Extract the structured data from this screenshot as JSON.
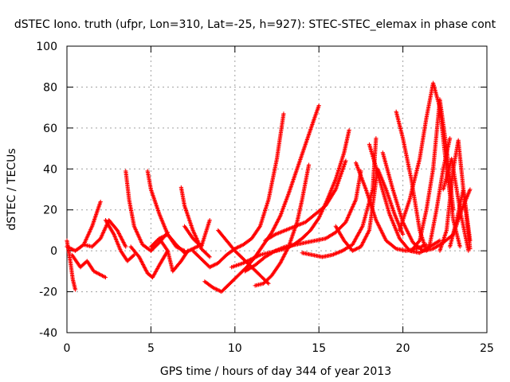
{
  "chart_data": {
    "type": "scatter",
    "title": "dSTEC Iono. truth (ufpr, Lon=310, Lat=-25, h=927): STEC-STEC_elemax in phase cont",
    "xlabel": "GPS time / hours of day 344 of year 2013",
    "ylabel": "dSTEC  / TECUs",
    "xlim": [
      0,
      25
    ],
    "ylim": [
      -40,
      100
    ],
    "xticks": [
      0,
      5,
      10,
      15,
      20,
      25
    ],
    "yticks": [
      -40,
      -20,
      0,
      20,
      40,
      60,
      80,
      100
    ],
    "grid": true,
    "marker": "+",
    "color": "#ff0000",
    "series": [
      {
        "x": [
          0.0,
          0.2,
          0.35,
          0.5
        ],
        "y": [
          5,
          -5,
          -14,
          -19
        ]
      },
      {
        "x": [
          0.0,
          0.5,
          1.0,
          1.5,
          2.0
        ],
        "y": [
          2,
          0,
          3,
          12,
          24
        ]
      },
      {
        "x": [
          0.3,
          0.8,
          1.2,
          1.6,
          2.3
        ],
        "y": [
          -2,
          -8,
          -5,
          -10,
          -13
        ]
      },
      {
        "x": [
          1.0,
          1.5,
          2.0,
          2.5,
          3.0,
          3.5
        ],
        "y": [
          3,
          2,
          6,
          15,
          10,
          2
        ]
      },
      {
        "x": [
          2.3,
          2.8,
          3.2,
          3.6,
          4.0
        ],
        "y": [
          15,
          8,
          0,
          -5,
          -2
        ]
      },
      {
        "x": [
          3.5,
          3.7,
          4.0,
          4.5,
          5.0,
          5.5,
          6.0
        ],
        "y": [
          39,
          25,
          12,
          3,
          0,
          4,
          9
        ]
      },
      {
        "x": [
          3.8,
          4.3,
          4.8,
          5.1,
          5.5,
          6.0
        ],
        "y": [
          2,
          -3,
          -11,
          -13,
          -7,
          0
        ]
      },
      {
        "x": [
          4.8,
          5.0,
          5.5,
          6.0,
          6.5,
          7.0
        ],
        "y": [
          39,
          30,
          18,
          8,
          2,
          0
        ]
      },
      {
        "x": [
          5.0,
          5.5,
          6.0,
          6.5,
          7.0,
          7.5,
          8.0
        ],
        "y": [
          2,
          6,
          8,
          3,
          -1,
          1,
          3
        ]
      },
      {
        "x": [
          5.5,
          6.0,
          6.3,
          6.8,
          7.2
        ],
        "y": [
          6,
          0,
          -10,
          -5,
          0
        ]
      },
      {
        "x": [
          6.8,
          7.0,
          7.5,
          8.0,
          8.5
        ],
        "y": [
          31,
          22,
          10,
          1,
          -3
        ]
      },
      {
        "x": [
          7.0,
          7.5,
          8.0,
          8.5
        ],
        "y": [
          12,
          6,
          2,
          15
        ]
      },
      {
        "x": [
          7.5,
          8.0,
          8.5,
          9.0,
          9.5,
          10.0,
          10.5,
          11.0,
          11.5,
          12.0,
          12.5,
          12.9
        ],
        "y": [
          0,
          -4,
          -8,
          -6,
          -2,
          1,
          3,
          6,
          12,
          25,
          45,
          67
        ]
      },
      {
        "x": [
          8.2,
          8.7,
          9.2,
          9.7,
          10.2,
          10.7,
          11.2,
          11.7,
          12.2,
          12.7,
          13.2,
          13.7,
          14.2,
          14.7,
          15.0
        ],
        "y": [
          -15,
          -18,
          -20,
          -16,
          -12,
          -8,
          -3,
          3,
          9,
          17,
          28,
          40,
          52,
          64,
          71
        ]
      },
      {
        "x": [
          9.0,
          9.5,
          10.0,
          10.5,
          11.0,
          11.5,
          12.0
        ],
        "y": [
          10,
          5,
          0,
          -4,
          -8,
          -12,
          -16
        ]
      },
      {
        "x": [
          9.8,
          10.5,
          11.0,
          11.5,
          12.0,
          12.5,
          13.0,
          13.5,
          14.0,
          14.5,
          15.0,
          15.5,
          16.0,
          16.5,
          16.8
        ],
        "y": [
          -8,
          -6,
          -4,
          -2,
          -1,
          0,
          1,
          3,
          6,
          10,
          16,
          25,
          35,
          48,
          59
        ]
      },
      {
        "x": [
          11.2,
          11.7,
          12.2,
          12.7,
          13.2,
          13.7,
          14.0,
          14.4
        ],
        "y": [
          -17,
          -16,
          -12,
          -6,
          2,
          14,
          25,
          42
        ]
      },
      {
        "x": [
          10.6,
          11.2,
          11.8,
          12.4,
          13.0,
          13.6,
          14.2,
          14.8,
          15.4,
          16.0,
          16.6,
          17.2,
          17.5
        ],
        "y": [
          -10,
          -7,
          -3,
          0,
          2,
          3,
          4,
          5,
          6,
          9,
          14,
          25,
          39
        ]
      },
      {
        "x": [
          14.0,
          14.6,
          15.2,
          15.8,
          16.4,
          17.0,
          17.6,
          18.2,
          18.4
        ],
        "y": [
          -1,
          -2,
          -3,
          -2,
          0,
          3,
          12,
          30,
          55
        ]
      },
      {
        "x": [
          11.8,
          12.4,
          13.0,
          13.6,
          14.2,
          14.8,
          15.4,
          16.0,
          16.6
        ],
        "y": [
          5,
          8,
          10,
          12,
          14,
          18,
          22,
          30,
          44
        ]
      },
      {
        "x": [
          16.0,
          16.5,
          17.0,
          17.5,
          18.0,
          18.5,
          19.0,
          19.5,
          20.0
        ],
        "y": [
          12,
          5,
          0,
          2,
          10,
          40,
          30,
          18,
          8
        ]
      },
      {
        "x": [
          17.2,
          17.8,
          18.4,
          19.0,
          19.6,
          20.2,
          20.8,
          21.4
        ],
        "y": [
          43,
          30,
          15,
          5,
          1,
          0,
          1,
          3
        ]
      },
      {
        "x": [
          18.0,
          18.6,
          19.2,
          19.8,
          20.4,
          21.0,
          21.6,
          22.2
        ],
        "y": [
          52,
          35,
          18,
          6,
          0,
          -1,
          2,
          5
        ]
      },
      {
        "x": [
          18.8,
          19.4,
          20.0,
          20.6,
          21.2,
          21.8,
          22.4,
          23.0
        ],
        "y": [
          48,
          30,
          14,
          4,
          0,
          1,
          4,
          8
        ]
      },
      {
        "x": [
          19.6,
          20.0,
          20.5,
          21.0,
          21.4,
          21.6,
          22.0,
          22.4,
          22.8
        ],
        "y": [
          68,
          55,
          35,
          10,
          0,
          3,
          20,
          40,
          55
        ]
      },
      {
        "x": [
          19.8,
          20.4,
          21.0,
          21.4,
          21.8,
          22.2,
          22.6,
          23.0,
          23.4
        ],
        "y": [
          10,
          25,
          45,
          65,
          82,
          70,
          40,
          15,
          2
        ]
      },
      {
        "x": [
          20.5,
          21.0,
          21.4,
          21.8,
          22.2,
          22.6,
          23.0
        ],
        "y": [
          0,
          5,
          20,
          40,
          74,
          50,
          20
        ]
      },
      {
        "x": [
          22.2,
          22.6,
          23.0,
          23.3,
          23.6,
          24.0
        ],
        "y": [
          0,
          10,
          40,
          54,
          30,
          5
        ]
      },
      {
        "x": [
          22.8,
          23.2,
          23.6,
          24.0
        ],
        "y": [
          2,
          15,
          30,
          1
        ]
      },
      {
        "x": [
          23.0,
          23.5,
          24.0
        ],
        "y": [
          8,
          20,
          30
        ]
      },
      {
        "x": [
          22.4,
          22.9,
          23.4,
          23.9
        ],
        "y": [
          30,
          45,
          20,
          0
        ]
      }
    ]
  }
}
